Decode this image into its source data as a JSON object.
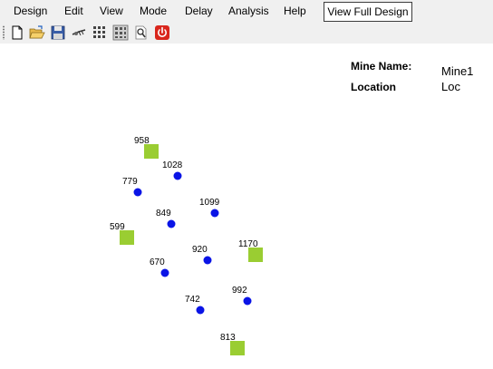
{
  "menu": {
    "items": [
      "Design",
      "Edit",
      "View",
      "Mode",
      "Delay",
      "Analysis",
      "Help"
    ],
    "view_full_design": "View Full Design"
  },
  "toolbar": {
    "icons": [
      "new-file-icon",
      "open-folder-icon",
      "save-disk-icon",
      "drill-icon",
      "grid-pattern-icon",
      "grid-select-icon",
      "search-page-icon",
      "power-icon"
    ]
  },
  "info": {
    "mine_name_label": "Mine Name:",
    "mine_name_value": "Mine1",
    "location_label": "Location",
    "location_value": "Loc"
  },
  "colors": {
    "square_hole": "#9acd32",
    "round_hole": "#0a14e6"
  },
  "holes": [
    {
      "id": "958",
      "shape": "square"
    },
    {
      "id": "1028",
      "shape": "circle"
    },
    {
      "id": "779",
      "shape": "circle"
    },
    {
      "id": "1099",
      "shape": "circle"
    },
    {
      "id": "849",
      "shape": "circle"
    },
    {
      "id": "599",
      "shape": "square"
    },
    {
      "id": "920",
      "shape": "circle"
    },
    {
      "id": "1170",
      "shape": "square"
    },
    {
      "id": "670",
      "shape": "circle"
    },
    {
      "id": "992",
      "shape": "circle"
    },
    {
      "id": "742",
      "shape": "circle"
    },
    {
      "id": "813",
      "shape": "square"
    }
  ]
}
